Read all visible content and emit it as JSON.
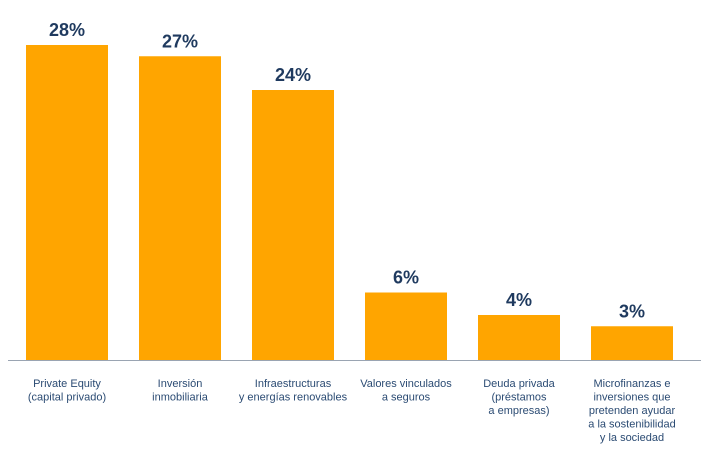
{
  "chart_data": {
    "type": "bar",
    "categories": [
      [
        "Private Equity",
        "(capital privado)"
      ],
      [
        "Inversión",
        "inmobiliaria"
      ],
      [
        "Infraestructuras",
        "y energías renovables"
      ],
      [
        "Valores vinculados",
        "a seguros"
      ],
      [
        "Deuda privada",
        "(préstamos",
        "a empresas)"
      ],
      [
        "Microfinanzas e",
        "inversiones que",
        "pretenden ayudar",
        "a la sostenibilidad",
        "y la sociedad"
      ]
    ],
    "values": [
      28,
      27,
      24,
      6,
      4,
      3
    ],
    "value_labels": [
      "28%",
      "27%",
      "24%",
      "6%",
      "4%",
      "3%"
    ],
    "ylim": [
      0,
      28
    ],
    "grid": false,
    "bar_color": "#FFA500",
    "label_color": "#1f3a5f",
    "category_color": "#2b4b73",
    "axis_color": "#9aa4b2"
  }
}
